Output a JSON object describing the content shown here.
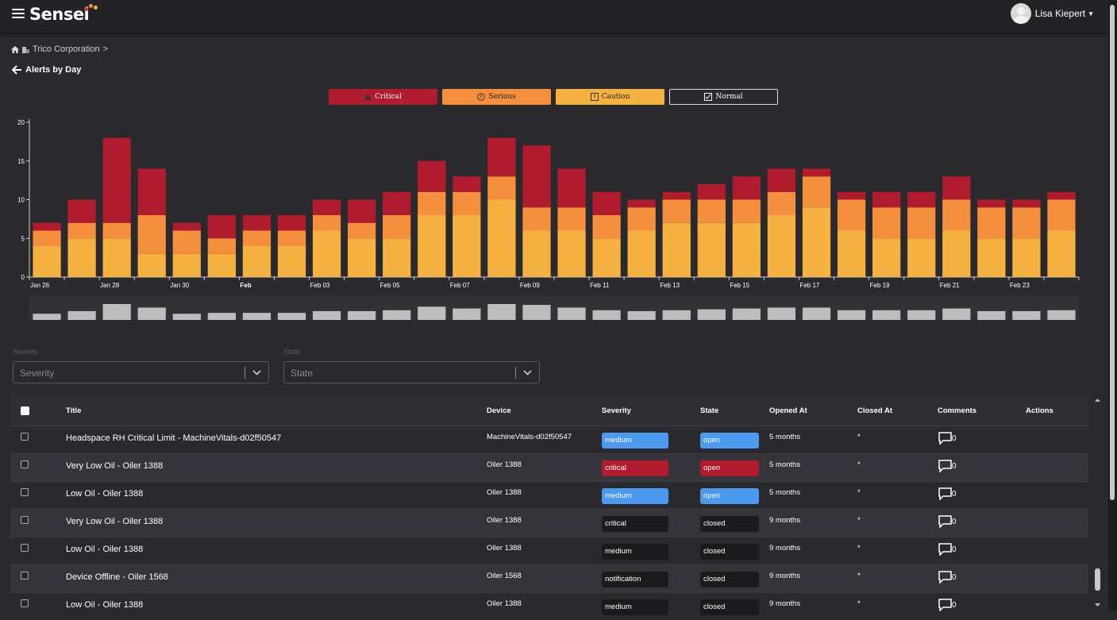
{
  "app": {
    "name": "Sensei",
    "user": "Lisa Kiepert"
  },
  "breadcrumb": {
    "org": "Trico Corporation",
    "sep": ">"
  },
  "page": {
    "title": "Alerts by Day"
  },
  "legend": [
    {
      "label": "Critical",
      "icon": "warning-triangle-icon",
      "color": "#b01b2e"
    },
    {
      "label": "Serious",
      "icon": "info-circle-icon",
      "color": "#f48f3d"
    },
    {
      "label": "Caution",
      "icon": "exclamation-square-icon",
      "color": "#f5b240"
    },
    {
      "label": "Normal",
      "icon": "check-square-icon",
      "color": "transparent"
    }
  ],
  "chart_data": {
    "type": "bar",
    "stacked": true,
    "ylim": [
      0,
      20
    ],
    "yticks": [
      0,
      5,
      10,
      15,
      20
    ],
    "xtick_labels": [
      "Jan 26",
      "Jan 28",
      "Jan 30",
      "Feb",
      "Feb 03",
      "Feb 05",
      "Feb 07",
      "Feb 09",
      "Feb 11",
      "Feb 13",
      "Feb 15",
      "Feb 17",
      "Feb 19",
      "Feb 21",
      "Feb 23"
    ],
    "categories": [
      "Jan 26",
      "Jan 27",
      "Jan 28",
      "Jan 29",
      "Jan 30",
      "Jan 31",
      "Feb 01",
      "Feb 02",
      "Feb 03",
      "Feb 04",
      "Feb 05",
      "Feb 06",
      "Feb 07",
      "Feb 08",
      "Feb 09",
      "Feb 10",
      "Feb 11",
      "Feb 12",
      "Feb 13",
      "Feb 14",
      "Feb 15",
      "Feb 16",
      "Feb 17",
      "Feb 18",
      "Feb 19",
      "Feb 20",
      "Feb 21",
      "Feb 22",
      "Feb 23",
      "Feb 24"
    ],
    "series": [
      {
        "name": "Caution",
        "color": "#f5b240",
        "values": [
          4,
          5,
          5,
          3,
          3,
          3,
          4,
          4,
          6,
          5,
          5,
          8,
          8,
          10,
          6,
          6,
          5,
          6,
          7,
          7,
          7,
          8,
          9,
          6,
          5,
          5,
          6,
          5,
          5,
          6
        ]
      },
      {
        "name": "Serious",
        "color": "#f48f3d",
        "values": [
          2,
          2,
          2,
          5,
          3,
          2,
          2,
          2,
          2,
          2,
          3,
          3,
          3,
          3,
          3,
          3,
          3,
          3,
          3,
          3,
          3,
          3,
          4,
          4,
          4,
          4,
          4,
          4,
          4,
          4
        ]
      },
      {
        "name": "Critical",
        "color": "#b01b2e",
        "values": [
          1,
          3,
          11,
          6,
          1,
          3,
          2,
          2,
          2,
          3,
          3,
          4,
          2,
          5,
          8,
          5,
          3,
          1,
          1,
          2,
          3,
          3,
          1,
          1,
          2,
          2,
          3,
          1,
          1,
          1
        ]
      }
    ],
    "navigator_color": "#bdbdbd",
    "grid": false
  },
  "filters": {
    "severity": {
      "label": "Severity",
      "placeholder": "Severity"
    },
    "state": {
      "label": "State",
      "placeholder": "State"
    }
  },
  "table": {
    "columns": [
      "Title",
      "Device",
      "Severity",
      "State",
      "Opened At",
      "Closed At",
      "Comments",
      "Actions"
    ],
    "rows": [
      {
        "title": "Headspace RH Critical Limit - MachineVitals-d02f50547",
        "device": "MachineVitals-d02f50547",
        "severity": "medium",
        "state": "open",
        "opened": "5 months",
        "closed": "*",
        "comments": "0",
        "style": "b-medium-open"
      },
      {
        "title": "Very Low Oil - Oiler 1388",
        "device": "Oiler 1388",
        "severity": "critical",
        "state": "open",
        "opened": "5 months",
        "closed": "*",
        "comments": "0",
        "style": "b-critical-open"
      },
      {
        "title": "Low Oil - Oiler 1388",
        "device": "Oiler 1388",
        "severity": "medium",
        "state": "open",
        "opened": "5 months",
        "closed": "*",
        "comments": "0",
        "style": "b-medium-open"
      },
      {
        "title": "Very Low Oil - Oiler 1388",
        "device": "Oiler 1388",
        "severity": "critical",
        "state": "closed",
        "opened": "9 months",
        "closed": "*",
        "comments": "0",
        "style": "b-closed"
      },
      {
        "title": "Low Oil - Oiler 1388",
        "device": "Oiler 1388",
        "severity": "medium",
        "state": "closed",
        "opened": "9 months",
        "closed": "*",
        "comments": "0",
        "style": "b-closed"
      },
      {
        "title": "Device Offline - Oiler 1568",
        "device": "Oiler 1568",
        "severity": "notification",
        "state": "closed",
        "opened": "9 months",
        "closed": "*",
        "comments": "0",
        "style": "b-closed"
      },
      {
        "title": "Low Oil - Oiler 1388",
        "device": "Oiler 1388",
        "severity": "medium",
        "state": "closed",
        "opened": "9 months",
        "closed": "*",
        "comments": "0",
        "style": "b-closed"
      }
    ]
  }
}
